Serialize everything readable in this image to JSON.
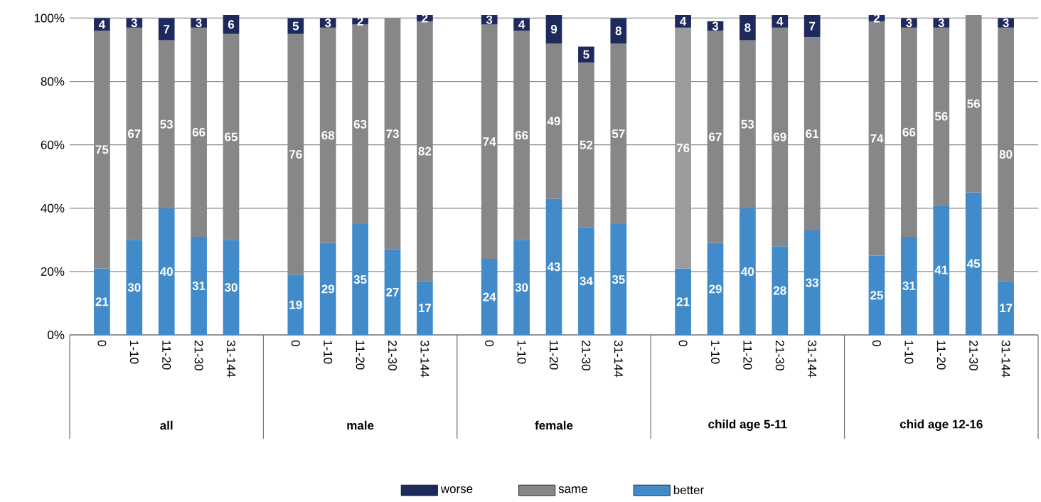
{
  "chart_data": {
    "type": "bar",
    "stacked": true,
    "categories": [
      "0",
      "1-10",
      "11-20",
      "21-30",
      "31-144",
      null,
      "0",
      "1-10",
      "11-20",
      "21-30",
      "31-144",
      null,
      "0",
      "1-10",
      "11-20",
      "21-30",
      "31-144",
      null,
      "0",
      "1-10",
      "11-20",
      "21-30",
      "31-144",
      null,
      "0",
      "1-10",
      "11-20",
      "21-30",
      "31-144"
    ],
    "series": [
      {
        "name": "better",
        "color": "#428bca",
        "values": [
          21,
          30,
          40,
          31,
          30,
          null,
          19,
          29,
          35,
          27,
          17,
          null,
          24,
          30,
          43,
          34,
          35,
          null,
          21,
          29,
          40,
          28,
          33,
          null,
          25,
          31,
          41,
          45,
          17
        ]
      },
      {
        "name": "same",
        "color": "#878688",
        "colors": [
          "#878688",
          "#878688",
          "#878688",
          "#878688",
          "#878688",
          null,
          "#878688",
          "#878688",
          "#878688",
          "#878688",
          "#878688",
          null,
          "#878688",
          "#878688",
          "#878688",
          "#878688",
          "#878688",
          null,
          "#9b9a9c",
          "#878688",
          "#878688",
          "#878688",
          "#878688",
          null,
          "#878688",
          "#878688",
          "#878688",
          "#878688",
          "#878688"
        ],
        "values": [
          75,
          67,
          53,
          66,
          65,
          null,
          76,
          68,
          63,
          73,
          82,
          null,
          74,
          66,
          49,
          52,
          57,
          null,
          76,
          67,
          53,
          69,
          61,
          null,
          74,
          66,
          56,
          56,
          80
        ]
      },
      {
        "name": "worse",
        "color": "#1f2a5c",
        "values": [
          4,
          3,
          7,
          3,
          6,
          null,
          5,
          3,
          2,
          null,
          2,
          null,
          3,
          4,
          9,
          5,
          8,
          null,
          4,
          3,
          8,
          4,
          7,
          null,
          2,
          3,
          3,
          null,
          3
        ]
      }
    ],
    "data_labels": true,
    "ylim": [
      0,
      101
    ],
    "yticks": [
      {
        "value": 0,
        "label": "0%"
      },
      {
        "value": 20,
        "label": "20%"
      },
      {
        "value": 40,
        "label": "40%"
      },
      {
        "value": 60,
        "label": "60%"
      },
      {
        "value": 80,
        "label": "80%"
      },
      {
        "value": 100,
        "label": "100%"
      }
    ],
    "grid": "y",
    "legend": "bottom",
    "annotations": [
      "all",
      "male",
      "female",
      "child age 5-11",
      "chid age 12-16"
    ]
  }
}
